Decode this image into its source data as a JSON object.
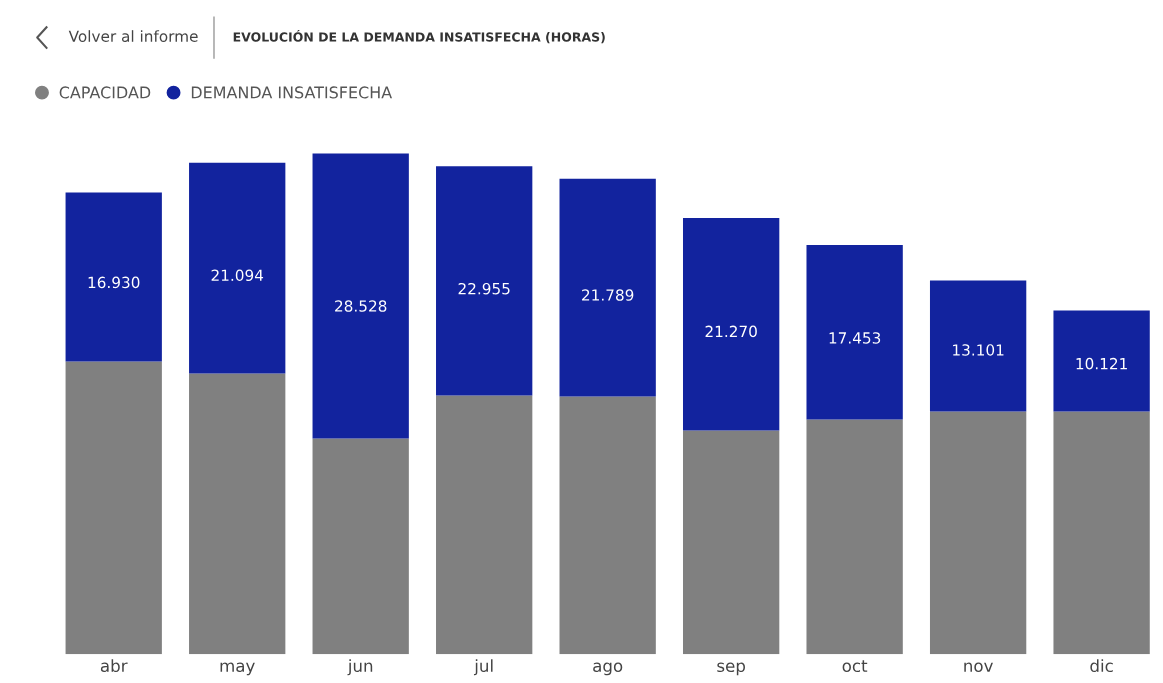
{
  "chart_data": {
    "type": "bar",
    "stacked": true,
    "title": "EVOLUCIÓN DE LA DEMANDA INSATISFECHA (HORAS)",
    "annotations": [
      "Volver al informe"
    ],
    "categories": [
      "abr",
      "may",
      "jun",
      "jul",
      "ago",
      "sep",
      "oct",
      "nov",
      "dic"
    ],
    "series": [
      {
        "name": "CAPACIDAD",
        "color": "#808080",
        "values": [
          29300,
          28100,
          21600,
          25900,
          25800,
          22400,
          23500,
          24300,
          24300
        ]
      },
      {
        "name": "DEMANDA INSATISFECHA",
        "color": "#12239e",
        "values": [
          16930,
          21094,
          28528,
          22955,
          21789,
          21270,
          17453,
          13101,
          10121
        ],
        "value_labels": [
          "16.930",
          "21.094",
          "28.528",
          "22.955",
          "21.789",
          "21.270",
          "17.453",
          "13.101",
          "10.121"
        ]
      }
    ],
    "legend": "top left",
    "grid": false
  }
}
